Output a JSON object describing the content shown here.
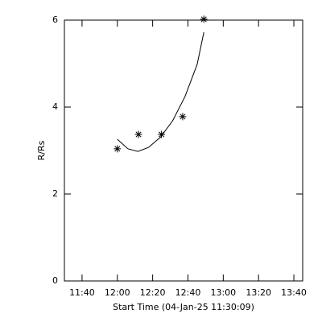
{
  "chart_data": {
    "type": "scatter",
    "x_label": "Start Time (04-Jan-25 11:30:09)",
    "y_label": "R/Rs",
    "series": [
      {
        "type": "scatter",
        "color": "#000000",
        "x": [
          720,
          732,
          745,
          757,
          769
        ],
        "values": [
          3.04,
          3.37,
          3.37,
          3.78,
          6.02
        ]
      },
      {
        "type": "line",
        "color": "#000000",
        "x": [
          720,
          726,
          731.6,
          737.6,
          744.5,
          751.4,
          758.3,
          765.2,
          769
        ],
        "values": [
          3.26,
          3.04,
          2.98,
          3.07,
          3.31,
          3.69,
          4.24,
          4.98,
          5.72
        ]
      }
    ],
    "xlim": [
      690,
      825
    ],
    "xticks": [
      {
        "value": 700,
        "label": "11:40"
      },
      {
        "value": 720,
        "label": "12:00"
      },
      {
        "value": 740,
        "label": "12:20"
      },
      {
        "value": 760,
        "label": "12:40"
      },
      {
        "value": 780,
        "label": "13:00"
      },
      {
        "value": 800,
        "label": "13:20"
      },
      {
        "value": 820,
        "label": "13:40"
      }
    ],
    "ylim": [
      0,
      6
    ],
    "yticks": [
      0,
      2,
      4,
      6
    ]
  }
}
